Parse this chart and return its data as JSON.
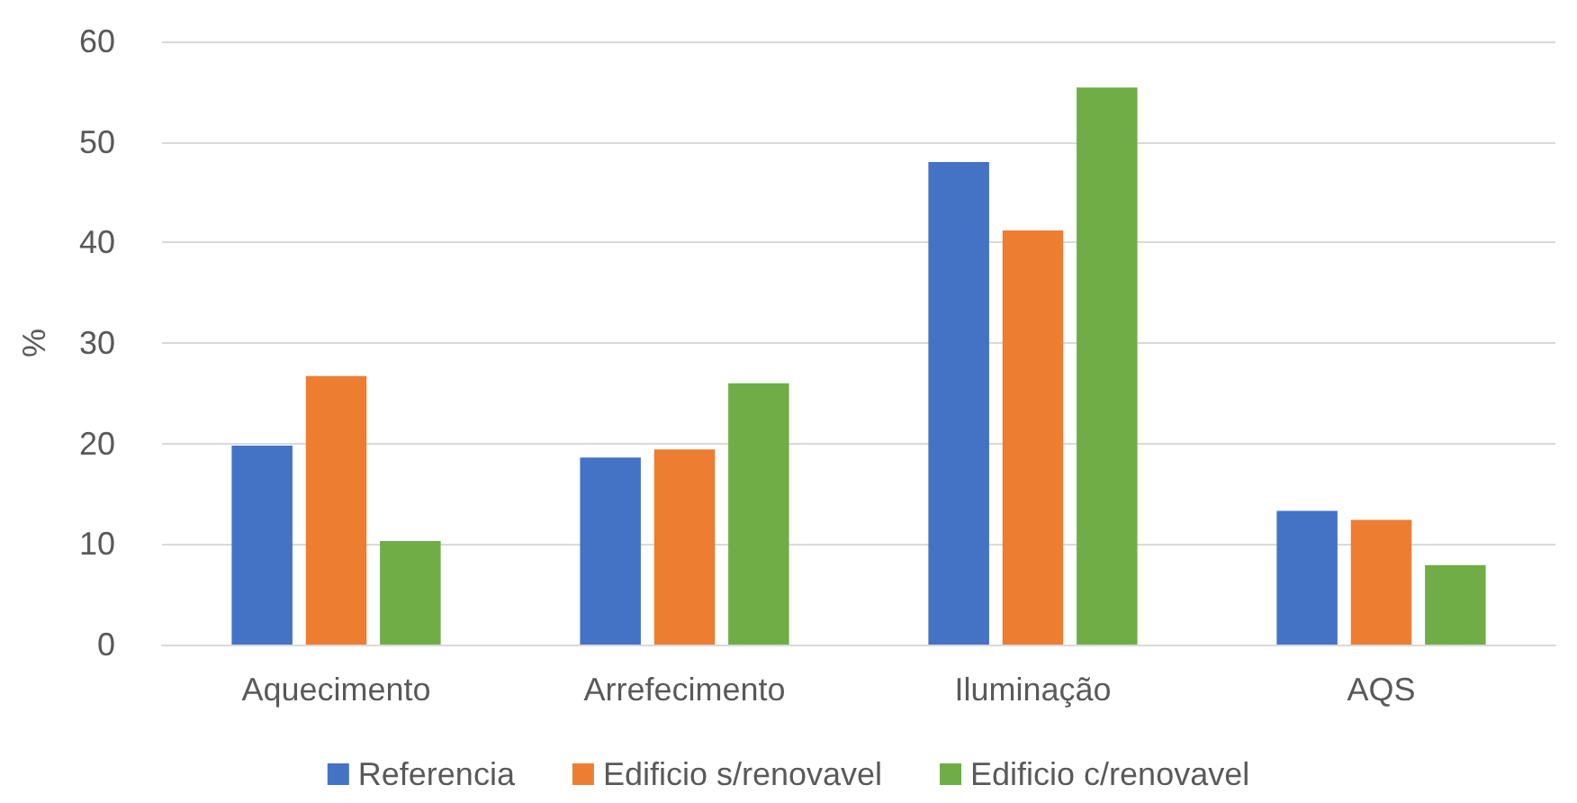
{
  "chart_data": {
    "type": "bar",
    "ylabel": "%",
    "categories": [
      "Aquecimento",
      "Arrefecimento",
      "Iluminação",
      "AQS"
    ],
    "series": [
      {
        "name": "Referencia",
        "color": "#4472c4",
        "values": [
          19.8,
          18.6,
          48.0,
          13.3
        ]
      },
      {
        "name": "Edificio s/renovavel",
        "color": "#ed7d31",
        "values": [
          26.7,
          19.4,
          41.2,
          12.4
        ]
      },
      {
        "name": "Edificio c/renovavel",
        "color": "#70ad47",
        "values": [
          10.3,
          26.0,
          55.4,
          7.9
        ]
      }
    ],
    "ylim": [
      0,
      60
    ],
    "yticks": [
      0,
      10,
      20,
      30,
      40,
      50,
      60
    ],
    "grid": "y",
    "legend": "bottom"
  }
}
